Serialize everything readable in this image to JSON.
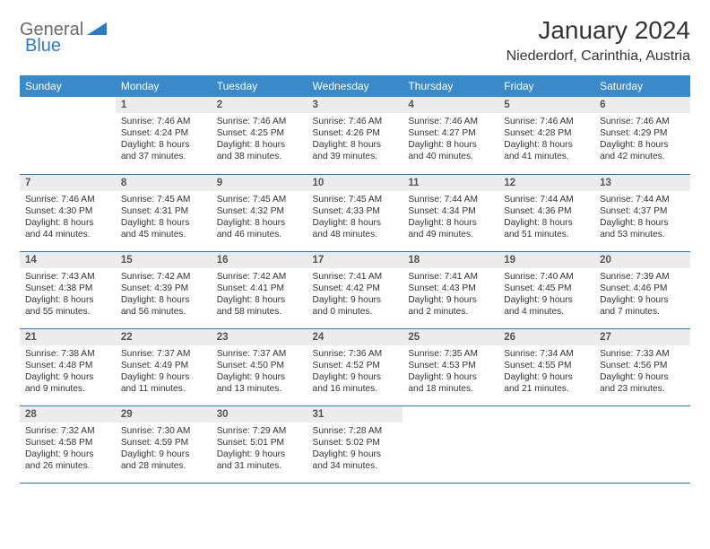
{
  "logo": {
    "text1": "General",
    "text2": "Blue"
  },
  "title": "January 2024",
  "location": "Niederdorf, Carinthia, Austria",
  "colors": {
    "header_bg": "#3a8ac9",
    "header_text": "#ffffff",
    "daynum_bg": "#ececec",
    "rule": "#2d7ac3",
    "logo_gray": "#6b6b6b",
    "logo_blue": "#2d7ac3"
  },
  "weekdays": [
    "Sunday",
    "Monday",
    "Tuesday",
    "Wednesday",
    "Thursday",
    "Friday",
    "Saturday"
  ],
  "weeks": [
    [
      {
        "day": "",
        "lines": []
      },
      {
        "day": "1",
        "lines": [
          "Sunrise: 7:46 AM",
          "Sunset: 4:24 PM",
          "Daylight: 8 hours",
          "and 37 minutes."
        ]
      },
      {
        "day": "2",
        "lines": [
          "Sunrise: 7:46 AM",
          "Sunset: 4:25 PM",
          "Daylight: 8 hours",
          "and 38 minutes."
        ]
      },
      {
        "day": "3",
        "lines": [
          "Sunrise: 7:46 AM",
          "Sunset: 4:26 PM",
          "Daylight: 8 hours",
          "and 39 minutes."
        ]
      },
      {
        "day": "4",
        "lines": [
          "Sunrise: 7:46 AM",
          "Sunset: 4:27 PM",
          "Daylight: 8 hours",
          "and 40 minutes."
        ]
      },
      {
        "day": "5",
        "lines": [
          "Sunrise: 7:46 AM",
          "Sunset: 4:28 PM",
          "Daylight: 8 hours",
          "and 41 minutes."
        ]
      },
      {
        "day": "6",
        "lines": [
          "Sunrise: 7:46 AM",
          "Sunset: 4:29 PM",
          "Daylight: 8 hours",
          "and 42 minutes."
        ]
      }
    ],
    [
      {
        "day": "7",
        "lines": [
          "Sunrise: 7:46 AM",
          "Sunset: 4:30 PM",
          "Daylight: 8 hours",
          "and 44 minutes."
        ]
      },
      {
        "day": "8",
        "lines": [
          "Sunrise: 7:45 AM",
          "Sunset: 4:31 PM",
          "Daylight: 8 hours",
          "and 45 minutes."
        ]
      },
      {
        "day": "9",
        "lines": [
          "Sunrise: 7:45 AM",
          "Sunset: 4:32 PM",
          "Daylight: 8 hours",
          "and 46 minutes."
        ]
      },
      {
        "day": "10",
        "lines": [
          "Sunrise: 7:45 AM",
          "Sunset: 4:33 PM",
          "Daylight: 8 hours",
          "and 48 minutes."
        ]
      },
      {
        "day": "11",
        "lines": [
          "Sunrise: 7:44 AM",
          "Sunset: 4:34 PM",
          "Daylight: 8 hours",
          "and 49 minutes."
        ]
      },
      {
        "day": "12",
        "lines": [
          "Sunrise: 7:44 AM",
          "Sunset: 4:36 PM",
          "Daylight: 8 hours",
          "and 51 minutes."
        ]
      },
      {
        "day": "13",
        "lines": [
          "Sunrise: 7:44 AM",
          "Sunset: 4:37 PM",
          "Daylight: 8 hours",
          "and 53 minutes."
        ]
      }
    ],
    [
      {
        "day": "14",
        "lines": [
          "Sunrise: 7:43 AM",
          "Sunset: 4:38 PM",
          "Daylight: 8 hours",
          "and 55 minutes."
        ]
      },
      {
        "day": "15",
        "lines": [
          "Sunrise: 7:42 AM",
          "Sunset: 4:39 PM",
          "Daylight: 8 hours",
          "and 56 minutes."
        ]
      },
      {
        "day": "16",
        "lines": [
          "Sunrise: 7:42 AM",
          "Sunset: 4:41 PM",
          "Daylight: 8 hours",
          "and 58 minutes."
        ]
      },
      {
        "day": "17",
        "lines": [
          "Sunrise: 7:41 AM",
          "Sunset: 4:42 PM",
          "Daylight: 9 hours",
          "and 0 minutes."
        ]
      },
      {
        "day": "18",
        "lines": [
          "Sunrise: 7:41 AM",
          "Sunset: 4:43 PM",
          "Daylight: 9 hours",
          "and 2 minutes."
        ]
      },
      {
        "day": "19",
        "lines": [
          "Sunrise: 7:40 AM",
          "Sunset: 4:45 PM",
          "Daylight: 9 hours",
          "and 4 minutes."
        ]
      },
      {
        "day": "20",
        "lines": [
          "Sunrise: 7:39 AM",
          "Sunset: 4:46 PM",
          "Daylight: 9 hours",
          "and 7 minutes."
        ]
      }
    ],
    [
      {
        "day": "21",
        "lines": [
          "Sunrise: 7:38 AM",
          "Sunset: 4:48 PM",
          "Daylight: 9 hours",
          "and 9 minutes."
        ]
      },
      {
        "day": "22",
        "lines": [
          "Sunrise: 7:37 AM",
          "Sunset: 4:49 PM",
          "Daylight: 9 hours",
          "and 11 minutes."
        ]
      },
      {
        "day": "23",
        "lines": [
          "Sunrise: 7:37 AM",
          "Sunset: 4:50 PM",
          "Daylight: 9 hours",
          "and 13 minutes."
        ]
      },
      {
        "day": "24",
        "lines": [
          "Sunrise: 7:36 AM",
          "Sunset: 4:52 PM",
          "Daylight: 9 hours",
          "and 16 minutes."
        ]
      },
      {
        "day": "25",
        "lines": [
          "Sunrise: 7:35 AM",
          "Sunset: 4:53 PM",
          "Daylight: 9 hours",
          "and 18 minutes."
        ]
      },
      {
        "day": "26",
        "lines": [
          "Sunrise: 7:34 AM",
          "Sunset: 4:55 PM",
          "Daylight: 9 hours",
          "and 21 minutes."
        ]
      },
      {
        "day": "27",
        "lines": [
          "Sunrise: 7:33 AM",
          "Sunset: 4:56 PM",
          "Daylight: 9 hours",
          "and 23 minutes."
        ]
      }
    ],
    [
      {
        "day": "28",
        "lines": [
          "Sunrise: 7:32 AM",
          "Sunset: 4:58 PM",
          "Daylight: 9 hours",
          "and 26 minutes."
        ]
      },
      {
        "day": "29",
        "lines": [
          "Sunrise: 7:30 AM",
          "Sunset: 4:59 PM",
          "Daylight: 9 hours",
          "and 28 minutes."
        ]
      },
      {
        "day": "30",
        "lines": [
          "Sunrise: 7:29 AM",
          "Sunset: 5:01 PM",
          "Daylight: 9 hours",
          "and 31 minutes."
        ]
      },
      {
        "day": "31",
        "lines": [
          "Sunrise: 7:28 AM",
          "Sunset: 5:02 PM",
          "Daylight: 9 hours",
          "and 34 minutes."
        ]
      },
      {
        "day": "",
        "lines": []
      },
      {
        "day": "",
        "lines": []
      },
      {
        "day": "",
        "lines": []
      }
    ]
  ]
}
